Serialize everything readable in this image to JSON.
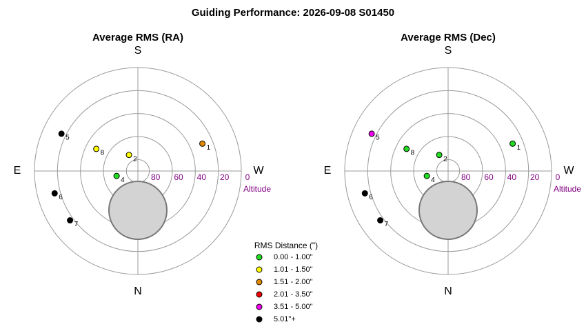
{
  "title": "Guiding Performance: 2026-09-08 S01450",
  "chart_data": [
    {
      "type": "polar",
      "title": "Average RMS (RA)",
      "compass": {
        "top": "S",
        "right": "W",
        "bottom": "N",
        "left": "E"
      },
      "radial_axis_label": "Altitude",
      "rlim": [
        90,
        0
      ],
      "rticks": [
        80,
        60,
        40,
        20,
        0
      ],
      "points": [
        {
          "label": "1",
          "azimuth": 247,
          "altitude": 29,
          "color": "#e08a00"
        },
        {
          "label": "2",
          "azimuth": 151,
          "altitude": 74,
          "color": "#ffff00"
        },
        {
          "label": "4",
          "azimuth": 77,
          "altitude": 71,
          "color": "#22dd22"
        },
        {
          "label": "5",
          "azimuth": 116,
          "altitude": 16,
          "color": "#000000"
        },
        {
          "label": "6",
          "azimuth": 75,
          "altitude": 15,
          "color": "#000000"
        },
        {
          "label": "7",
          "azimuth": 54,
          "altitude": 17,
          "color": "#000000"
        },
        {
          "label": "8",
          "azimuth": 118,
          "altitude": 49,
          "color": "#ffff00"
        }
      ]
    },
    {
      "type": "polar",
      "title": "Average RMS (Dec)",
      "compass": {
        "top": "S",
        "right": "W",
        "bottom": "N",
        "left": "E"
      },
      "radial_axis_label": "Altitude",
      "rlim": [
        90,
        0
      ],
      "rticks": [
        80,
        60,
        40,
        20,
        0
      ],
      "points": [
        {
          "label": "1",
          "azimuth": 247,
          "altitude": 29,
          "color": "#22dd22"
        },
        {
          "label": "2",
          "azimuth": 151,
          "altitude": 74,
          "color": "#22dd22"
        },
        {
          "label": "4",
          "azimuth": 77,
          "altitude": 71,
          "color": "#22dd22"
        },
        {
          "label": "5",
          "azimuth": 116,
          "altitude": 16,
          "color": "#ee00ee"
        },
        {
          "label": "6",
          "azimuth": 75,
          "altitude": 15,
          "color": "#000000"
        },
        {
          "label": "7",
          "azimuth": 54,
          "altitude": 17,
          "color": "#000000"
        },
        {
          "label": "8",
          "azimuth": 118,
          "altitude": 49,
          "color": "#22dd22"
        }
      ]
    }
  ],
  "legend": {
    "title": "RMS Distance (\")",
    "items": [
      {
        "label": "0.00 - 1.00\"",
        "color": "#22dd22"
      },
      {
        "label": "1.01 - 1.50\"",
        "color": "#ffff00"
      },
      {
        "label": "1.51 - 2.00\"",
        "color": "#e08a00"
      },
      {
        "label": "2.01 - 3.50\"",
        "color": "#ee0000"
      },
      {
        "label": "3.51 - 5.00\"",
        "color": "#ee00ee"
      },
      {
        "label": "5.01\"+",
        "color": "#000000"
      }
    ]
  }
}
